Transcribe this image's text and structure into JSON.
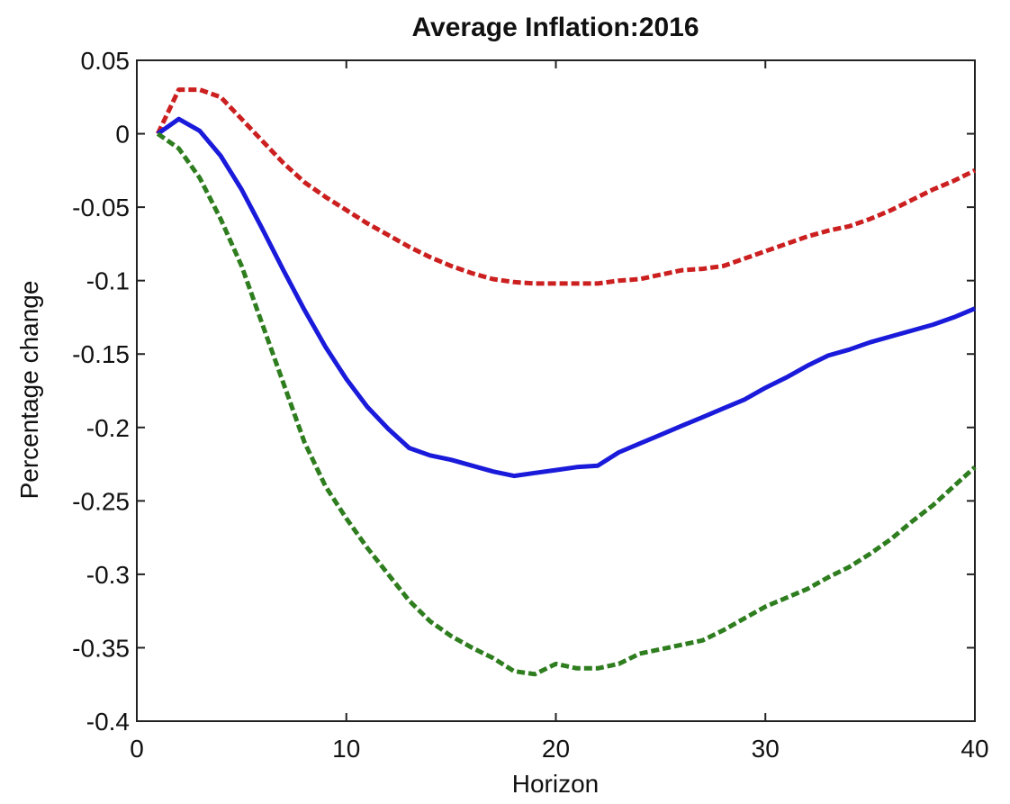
{
  "chart_data": {
    "type": "line",
    "title": "Average Inflation:2016",
    "xlabel": "Horizon",
    "ylabel": "Percentage change",
    "xlim": [
      0,
      40
    ],
    "ylim": [
      -0.4,
      0.05
    ],
    "xticks": [
      0,
      10,
      20,
      30,
      40
    ],
    "xtick_labels": [
      "0",
      "10",
      "20",
      "30",
      "40"
    ],
    "yticks": [
      0.05,
      0,
      -0.05,
      -0.1,
      -0.15,
      -0.2,
      -0.25,
      -0.3,
      -0.35,
      -0.4
    ],
    "ytick_labels": [
      "0.05",
      "0",
      "-0.05",
      "-0.1",
      "-0.15",
      "-0.2",
      "-0.25",
      "-0.3",
      "-0.35",
      "-0.4"
    ],
    "grid": false,
    "legend": "none",
    "series": [
      {
        "color": "#cc1f1f",
        "style": "dashed",
        "x": [
          1,
          2,
          3,
          4,
          5,
          6,
          7,
          8,
          9,
          10,
          11,
          12,
          13,
          14,
          15,
          16,
          17,
          18,
          19,
          20,
          21,
          22,
          23,
          24,
          25,
          26,
          27,
          28,
          29,
          30,
          31,
          32,
          33,
          34,
          35,
          36,
          37,
          38,
          39,
          40
        ],
        "y": [
          0.0,
          0.03,
          0.03,
          0.025,
          0.01,
          -0.005,
          -0.02,
          -0.033,
          -0.043,
          -0.052,
          -0.061,
          -0.069,
          -0.077,
          -0.084,
          -0.09,
          -0.095,
          -0.099,
          -0.101,
          -0.102,
          -0.102,
          -0.102,
          -0.102,
          -0.1,
          -0.099,
          -0.096,
          -0.093,
          -0.092,
          -0.09,
          -0.085,
          -0.08,
          -0.075,
          -0.07,
          -0.066,
          -0.063,
          -0.058,
          -0.052,
          -0.045,
          -0.038,
          -0.032,
          -0.025
        ]
      },
      {
        "color": "#1a1adb",
        "style": "solid",
        "x": [
          1,
          2,
          3,
          4,
          5,
          6,
          7,
          8,
          9,
          10,
          11,
          12,
          13,
          14,
          15,
          16,
          17,
          18,
          19,
          20,
          21,
          22,
          23,
          24,
          25,
          26,
          27,
          28,
          29,
          30,
          31,
          32,
          33,
          34,
          35,
          36,
          37,
          38,
          39,
          40
        ],
        "y": [
          0.0,
          0.01,
          0.002,
          -0.015,
          -0.038,
          -0.065,
          -0.093,
          -0.12,
          -0.145,
          -0.167,
          -0.186,
          -0.201,
          -0.214,
          -0.219,
          -0.222,
          -0.226,
          -0.23,
          -0.233,
          -0.231,
          -0.229,
          -0.227,
          -0.226,
          -0.217,
          -0.211,
          -0.205,
          -0.199,
          -0.193,
          -0.187,
          -0.181,
          -0.173,
          -0.166,
          -0.158,
          -0.151,
          -0.147,
          -0.142,
          -0.138,
          -0.134,
          -0.13,
          -0.125,
          -0.119
        ]
      },
      {
        "color": "#2e7d1e",
        "style": "dashed",
        "x": [
          1,
          2,
          3,
          4,
          5,
          6,
          7,
          8,
          9,
          10,
          11,
          12,
          13,
          14,
          15,
          16,
          17,
          18,
          19,
          20,
          21,
          22,
          23,
          24,
          25,
          26,
          27,
          28,
          29,
          30,
          31,
          32,
          33,
          34,
          35,
          36,
          37,
          38,
          39,
          40
        ],
        "y": [
          0.0,
          -0.01,
          -0.03,
          -0.058,
          -0.09,
          -0.13,
          -0.17,
          -0.21,
          -0.24,
          -0.262,
          -0.282,
          -0.3,
          -0.318,
          -0.332,
          -0.342,
          -0.35,
          -0.357,
          -0.366,
          -0.368,
          -0.361,
          -0.364,
          -0.364,
          -0.361,
          -0.354,
          -0.351,
          -0.348,
          -0.345,
          -0.338,
          -0.33,
          -0.322,
          -0.316,
          -0.31,
          -0.302,
          -0.295,
          -0.286,
          -0.276,
          -0.264,
          -0.253,
          -0.24,
          -0.227
        ]
      }
    ]
  }
}
